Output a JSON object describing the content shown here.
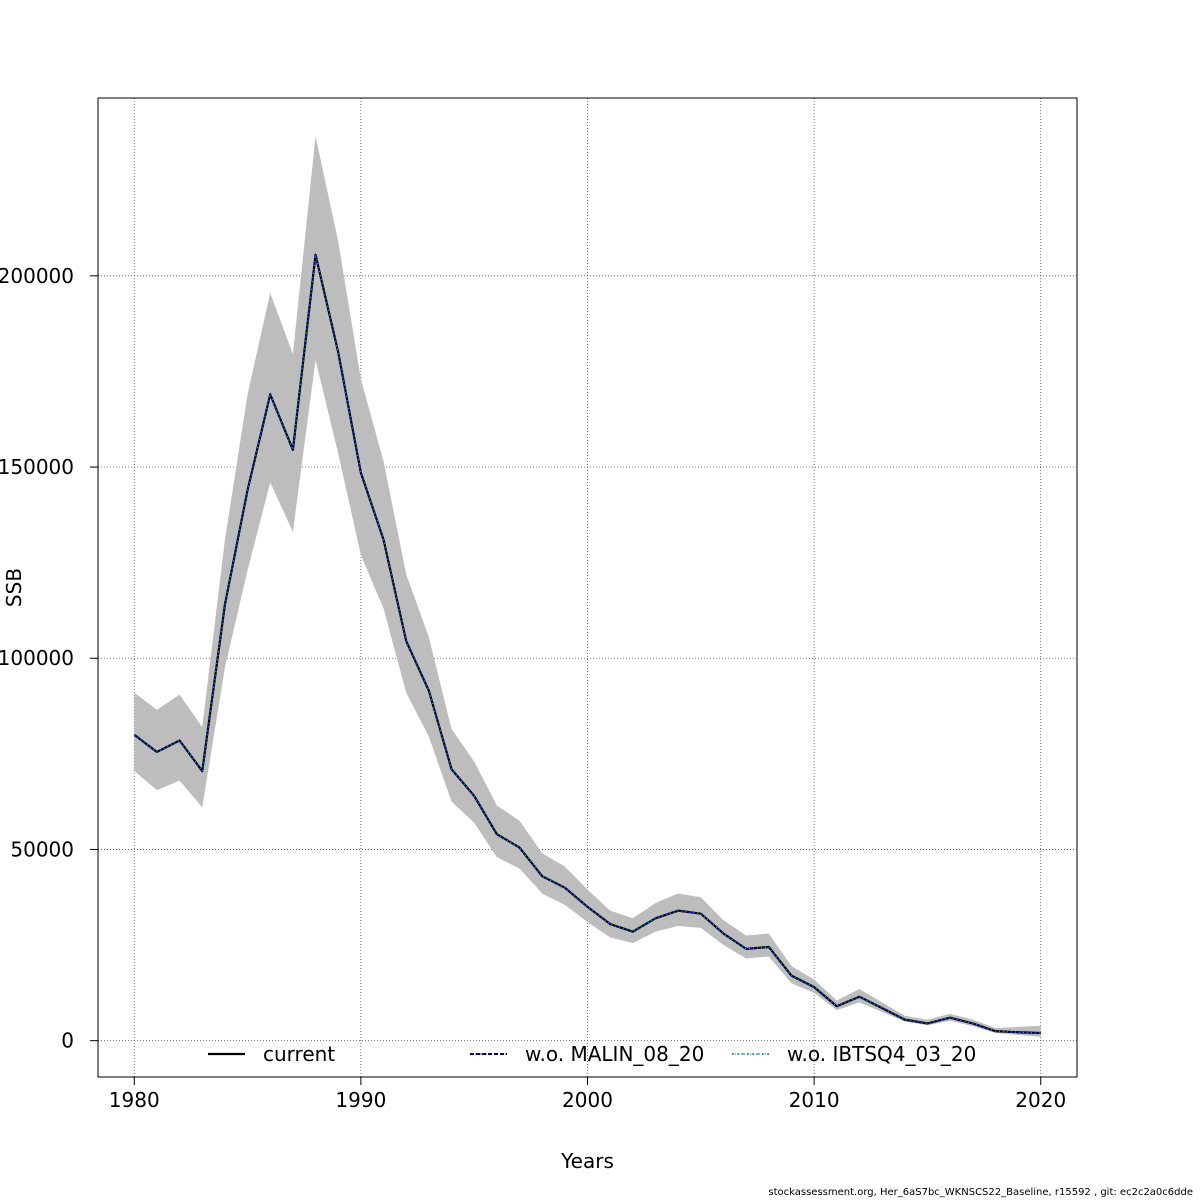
{
  "chart_data": {
    "type": "line",
    "title": "",
    "xlabel": "Years",
    "ylabel": "SSB",
    "xlim": [
      1978.4,
      2021.6
    ],
    "ylim": [
      -9500,
      246500
    ],
    "x_ticks": [
      1980,
      1990,
      2000,
      2010,
      2020
    ],
    "x_tick_labels": [
      "1980",
      "1990",
      "2000",
      "2010",
      "2020"
    ],
    "y_ticks": [
      0,
      50000,
      100000,
      150000,
      200000
    ],
    "y_tick_labels": [
      "0",
      "50000",
      "100000",
      "150000",
      "200000"
    ],
    "grid": true,
    "years": [
      1980,
      1981,
      1982,
      1983,
      1984,
      1985,
      1986,
      1987,
      1988,
      1989,
      1990,
      1991,
      1992,
      1993,
      1994,
      1995,
      1996,
      1997,
      1998,
      1999,
      2000,
      2001,
      2002,
      2003,
      2004,
      2005,
      2006,
      2007,
      2008,
      2009,
      2010,
      2011,
      2012,
      2013,
      2014,
      2015,
      2016,
      2017,
      2018,
      2019,
      2020
    ],
    "series": [
      {
        "name": "current",
        "color": "#000000",
        "values": [
          80000,
          75500,
          78500,
          70500,
          114000,
          144000,
          169000,
          154500,
          205500,
          180000,
          148500,
          131000,
          104500,
          91500,
          71000,
          64000,
          54000,
          50500,
          43000,
          40000,
          35000,
          30500,
          28500,
          32000,
          34000,
          33200,
          28000,
          24000,
          24500,
          17000,
          14000,
          9000,
          11500,
          8500,
          5500,
          4500,
          6000,
          4500,
          2500,
          2200,
          2000
        ],
        "upper": [
          91000,
          86500,
          90500,
          82000,
          131000,
          169000,
          195500,
          179500,
          236500,
          209000,
          173000,
          151500,
          122000,
          105500,
          81500,
          73000,
          61500,
          57500,
          49000,
          45500,
          39500,
          34000,
          32000,
          36000,
          38500,
          37500,
          31500,
          27500,
          28000,
          19500,
          16000,
          10500,
          13500,
          10000,
          6500,
          5500,
          7000,
          5500,
          3300,
          3600,
          3900
        ],
        "lower": [
          70500,
          65500,
          68000,
          61000,
          97500,
          123000,
          146000,
          133000,
          178000,
          153500,
          127000,
          113000,
          91000,
          79500,
          62500,
          57000,
          48000,
          45000,
          38500,
          35500,
          31000,
          27000,
          25500,
          28500,
          30000,
          29500,
          25000,
          21500,
          22000,
          15000,
          12500,
          8000,
          10000,
          7500,
          5000,
          4000,
          5200,
          3800,
          2000,
          1500,
          1000
        ],
        "band_color": "#bdbdbd"
      },
      {
        "name": "w.o. MALIN_08_20",
        "color": "#00008b",
        "values": "same-as-current"
      },
      {
        "name": "w.o. IBTSQ4_03_20",
        "color": "#00bfff",
        "values": "same-as-current"
      }
    ],
    "legend": {
      "placement": "bottom",
      "entries": [
        "current",
        "w.o. MALIN_08_20",
        "w.o. IBTSQ4_03_20"
      ]
    }
  },
  "footer": "stockassessment.org, Her_6aS7bc_WKNSCS22_Baseline, r15592 , git: ec2c2a0c6dde"
}
